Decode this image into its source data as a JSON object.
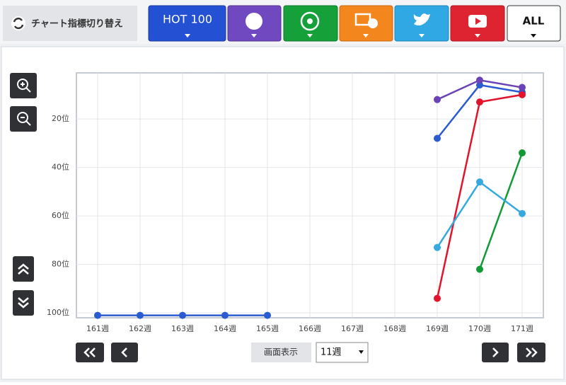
{
  "toolbar": {
    "label": "チャート指標切り替え",
    "hot100": "HOT 100",
    "all": "ALL"
  },
  "chart_data": {
    "type": "line",
    "categories": [
      "161週",
      "162週",
      "163週",
      "164週",
      "165週",
      "166週",
      "167週",
      "168週",
      "169週",
      "170週",
      "171週"
    ],
    "ylim": [
      1,
      102
    ],
    "y_inverted": true,
    "grid": true,
    "yticks": [
      {
        "value": 20,
        "label": "20位"
      },
      {
        "value": 40,
        "label": "40位"
      },
      {
        "value": 60,
        "label": "60位"
      },
      {
        "value": 80,
        "label": "80位"
      },
      {
        "value": 100,
        "label": "100位"
      }
    ],
    "series": [
      {
        "color": "#2a5bd0",
        "values": [
          101,
          101,
          101,
          101,
          101,
          null,
          null,
          null,
          28,
          6,
          9
        ]
      },
      {
        "color": "#6b42b8",
        "values": [
          null,
          null,
          null,
          null,
          null,
          null,
          null,
          null,
          12,
          4,
          7
        ]
      },
      {
        "color": "#e2142c",
        "values": [
          null,
          null,
          null,
          null,
          null,
          null,
          null,
          null,
          94,
          13,
          10
        ]
      },
      {
        "color": "#129a36",
        "values": [
          null,
          null,
          null,
          null,
          null,
          null,
          null,
          null,
          null,
          82,
          34
        ]
      },
      {
        "color": "#36a9df",
        "values": [
          null,
          null,
          null,
          null,
          null,
          null,
          null,
          null,
          73,
          46,
          59
        ]
      }
    ]
  },
  "controls": {
    "display_label": "画面表示",
    "weeks": "11週"
  }
}
